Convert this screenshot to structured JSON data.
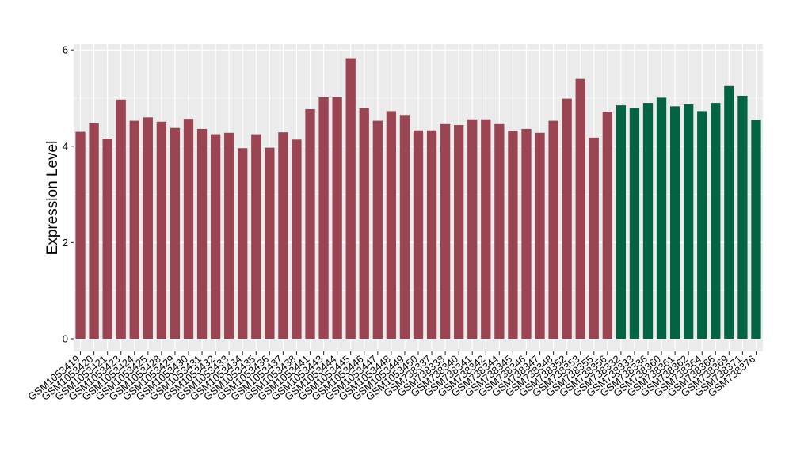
{
  "chart_data": {
    "type": "bar",
    "ylabel": "Expression Level",
    "ylim": [
      0,
      6.1
    ],
    "yticks": [
      0,
      2,
      4,
      6
    ],
    "grid": true,
    "categories": [
      "GSM1053419",
      "GSM1053420",
      "GSM1053421",
      "GSM1053423",
      "GSM1053424",
      "GSM1053425",
      "GSM1053428",
      "GSM1053429",
      "GSM1053430",
      "GSM1053431",
      "GSM1053432",
      "GSM1053433",
      "GSM1053434",
      "GSM1053435",
      "GSM1053436",
      "GSM1053437",
      "GSM1053438",
      "GSM1053441",
      "GSM1053443",
      "GSM1053444",
      "GSM1053445",
      "GSM1053446",
      "GSM1053447",
      "GSM1053448",
      "GSM1053449",
      "GSM1053450",
      "GSM738337",
      "GSM738338",
      "GSM738340",
      "GSM738341",
      "GSM738342",
      "GSM738344",
      "GSM738345",
      "GSM738346",
      "GSM738347",
      "GSM738348",
      "GSM738352",
      "GSM738353",
      "GSM738355",
      "GSM738356",
      "GSM738332",
      "GSM738333",
      "GSM738336",
      "GSM738360",
      "GSM738361",
      "GSM738362",
      "GSM738364",
      "GSM738366",
      "GSM738369",
      "GSM738371",
      "GSM738376"
    ],
    "values": [
      4.3,
      4.48,
      4.16,
      4.97,
      4.53,
      4.6,
      4.51,
      4.38,
      4.57,
      4.36,
      4.25,
      4.28,
      3.96,
      4.25,
      3.97,
      4.29,
      4.14,
      4.77,
      5.02,
      5.02,
      5.83,
      4.79,
      4.53,
      4.73,
      4.65,
      4.33,
      4.33,
      4.46,
      4.44,
      4.56,
      4.56,
      4.46,
      4.32,
      4.36,
      4.28,
      4.53,
      4.99,
      5.4,
      4.18,
      4.72,
      4.85,
      4.8,
      4.9,
      5.01,
      4.83,
      4.87,
      4.73,
      4.9,
      5.25,
      5.05,
      4.55
    ],
    "groups": [
      "red",
      "red",
      "red",
      "red",
      "red",
      "red",
      "red",
      "red",
      "red",
      "red",
      "red",
      "red",
      "red",
      "red",
      "red",
      "red",
      "red",
      "red",
      "red",
      "red",
      "red",
      "red",
      "red",
      "red",
      "red",
      "red",
      "red",
      "red",
      "red",
      "red",
      "red",
      "red",
      "red",
      "red",
      "red",
      "red",
      "red",
      "red",
      "red",
      "red",
      "green",
      "green",
      "green",
      "green",
      "green",
      "green",
      "green",
      "green",
      "green",
      "green",
      "green"
    ],
    "colors": {
      "red": "#9B4452",
      "green": "#036443"
    },
    "panel_background": "#EBEBEB",
    "grid_color": "#FFFFFF"
  }
}
